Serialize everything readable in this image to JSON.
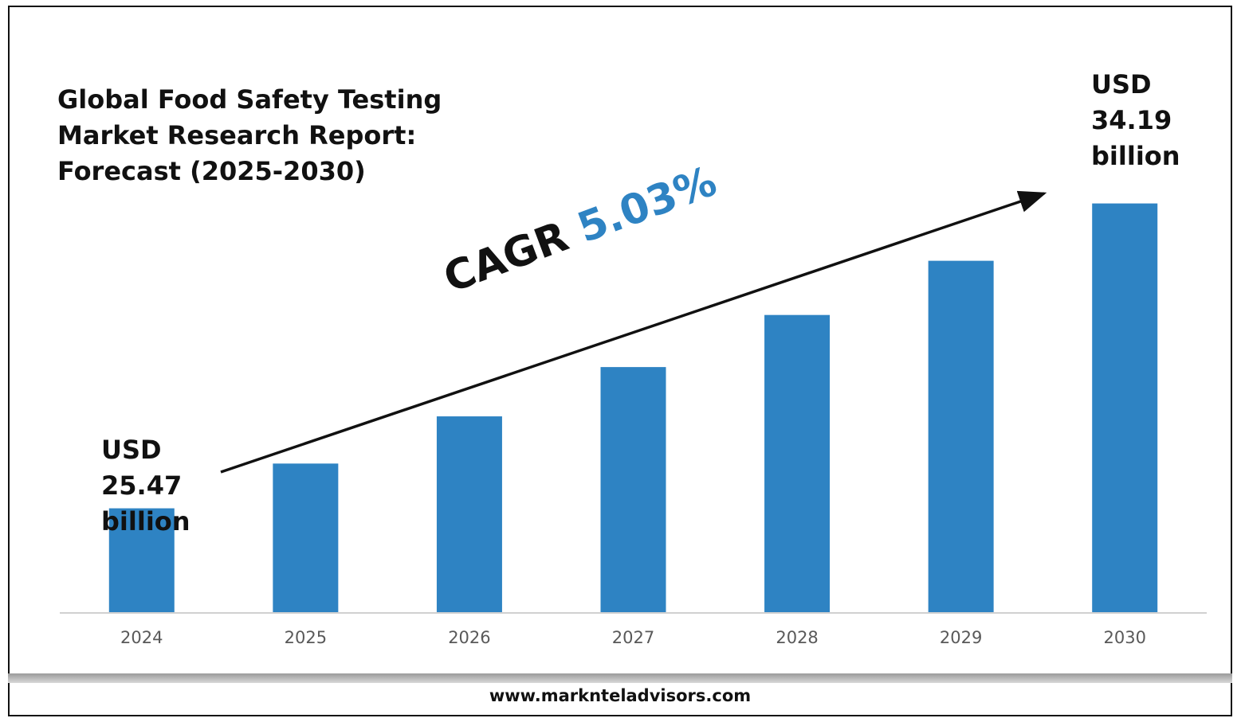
{
  "footer": {
    "website": "www.marknteladvisors.com"
  },
  "chart_data": {
    "type": "bar",
    "title_lines": [
      "Global Food Safety Testing",
      "Market Research Report:",
      "Forecast (2025-2030)"
    ],
    "categories": [
      "2024",
      "2025",
      "2026",
      "2027",
      "2028",
      "2029",
      "2030"
    ],
    "values": [
      25.47,
      26.75,
      28.1,
      29.51,
      31.0,
      32.55,
      34.19
    ],
    "unit": "USD billion",
    "ylim": [
      22.5,
      35.0
    ],
    "bar_color": "#2e83c3",
    "grid": false,
    "legend": "none",
    "annotations": {
      "start": {
        "lines": [
          "USD",
          "25.47",
          "billion"
        ]
      },
      "end": {
        "lines": [
          "USD",
          "34.19",
          "billion"
        ]
      },
      "cagr": {
        "label": "CAGR",
        "value": "5.03%"
      }
    }
  }
}
